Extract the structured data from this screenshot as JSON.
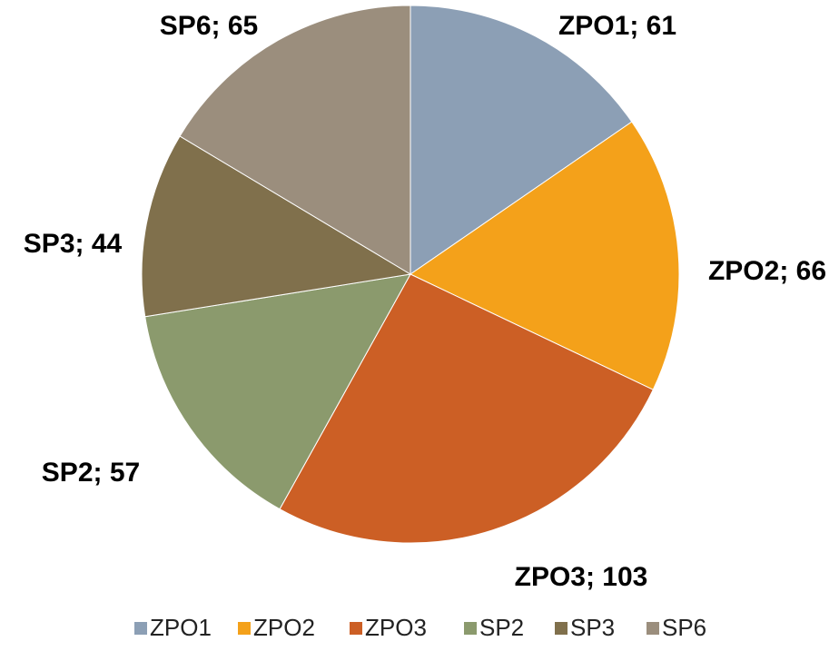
{
  "chart_data": {
    "type": "pie",
    "categories": [
      "ZPO1",
      "ZPO2",
      "ZPO3",
      "SP2",
      "SP3",
      "SP6"
    ],
    "values": [
      61,
      66,
      103,
      57,
      44,
      65
    ],
    "value_labels": [
      "ZPO1; 61",
      "ZPO2; 66",
      "ZPO3; 103",
      "SP2; 57",
      "SP3; 44",
      "SP6; 65"
    ],
    "colors": [
      "#8c9fb5",
      "#f4a11a",
      "#cc5f25",
      "#8b9a6d",
      "#80704c",
      "#9b8e7d"
    ],
    "legend": "bottom"
  }
}
